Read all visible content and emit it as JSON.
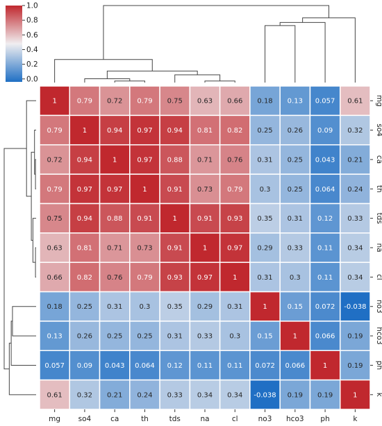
{
  "chart_data": {
    "type": "heatmap",
    "title": "",
    "xlabel": "",
    "ylabel": "",
    "clustered": true,
    "colormap": "coolwarm (blue-white-red)",
    "colors": {
      "low": "#1f6fc4",
      "mid": "#f0eef0",
      "high": "#c0282e",
      "cell_border": "#ffffff",
      "dendrogram": "#444444"
    },
    "row_labels": [
      "mg",
      "so4",
      "ca",
      "th",
      "tds",
      "na",
      "cl",
      "no3",
      "hco3",
      "ph",
      "k"
    ],
    "col_labels": [
      "mg",
      "so4",
      "ca",
      "th",
      "tds",
      "na",
      "cl",
      "no3",
      "hco3",
      "ph",
      "k"
    ],
    "colorbar": {
      "range": [
        -0.04,
        1.0
      ],
      "ticks": [
        "0.0",
        "0.2",
        "0.4",
        "0.6",
        "0.8",
        "1.0"
      ]
    },
    "values": [
      [
        "1",
        "0.79",
        "0.72",
        "0.79",
        "0.75",
        "0.63",
        "0.66",
        "0.18",
        "0.13",
        "0.057",
        "0.61"
      ],
      [
        "0.79",
        "1",
        "0.94",
        "0.97",
        "0.94",
        "0.81",
        "0.82",
        "0.25",
        "0.26",
        "0.09",
        "0.32"
      ],
      [
        "0.72",
        "0.94",
        "1",
        "0.97",
        "0.88",
        "0.71",
        "0.76",
        "0.31",
        "0.25",
        "0.043",
        "0.21"
      ],
      [
        "0.79",
        "0.97",
        "0.97",
        "1",
        "0.91",
        "0.73",
        "0.79",
        "0.3",
        "0.25",
        "0.064",
        "0.24"
      ],
      [
        "0.75",
        "0.94",
        "0.88",
        "0.91",
        "1",
        "0.91",
        "0.93",
        "0.35",
        "0.31",
        "0.12",
        "0.33"
      ],
      [
        "0.63",
        "0.81",
        "0.71",
        "0.73",
        "0.91",
        "1",
        "0.97",
        "0.29",
        "0.33",
        "0.11",
        "0.34"
      ],
      [
        "0.66",
        "0.82",
        "0.76",
        "0.79",
        "0.93",
        "0.97",
        "1",
        "0.31",
        "0.3",
        "0.11",
        "0.34"
      ],
      [
        "0.18",
        "0.25",
        "0.31",
        "0.3",
        "0.35",
        "0.29",
        "0.31",
        "1",
        "0.15",
        "0.072",
        "-0.038"
      ],
      [
        "0.13",
        "0.26",
        "0.25",
        "0.25",
        "0.31",
        "0.33",
        "0.3",
        "0.15",
        "1",
        "0.066",
        "0.19"
      ],
      [
        "0.057",
        "0.09",
        "0.043",
        "0.064",
        "0.12",
        "0.11",
        "0.11",
        "0.072",
        "0.066",
        "1",
        "0.19"
      ],
      [
        "0.61",
        "0.32",
        "0.21",
        "0.24",
        "0.33",
        "0.34",
        "0.34",
        "-0.038",
        "0.19",
        "0.19",
        "1"
      ]
    ]
  }
}
